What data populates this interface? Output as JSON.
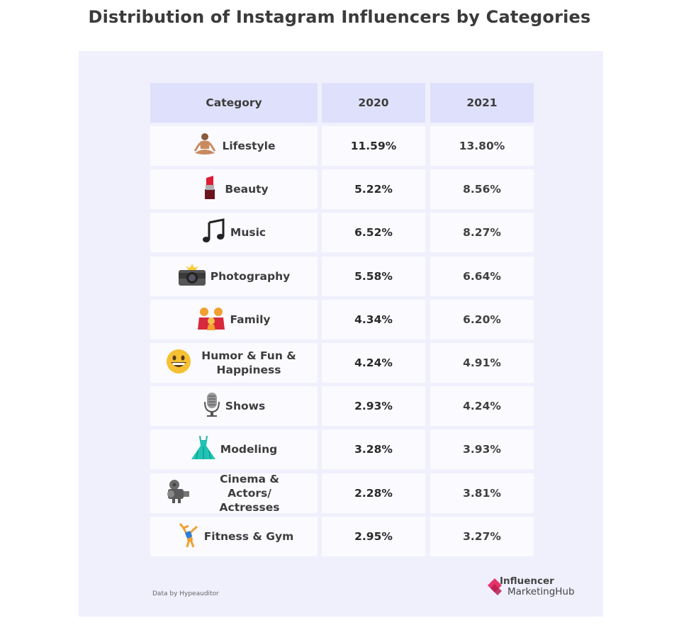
{
  "title": "Distribution of Instagram Influencers by Categories",
  "chart_data": {
    "type": "table",
    "columns": [
      "Category",
      "2020",
      "2021"
    ],
    "rows": [
      {
        "category": "Lifestyle",
        "icon": "person-in-lotus-position-icon",
        "v2020": "11.59%",
        "v2021": "13.80%"
      },
      {
        "category": "Beauty",
        "icon": "lipstick-icon",
        "v2020": "5.22%",
        "v2021": "8.56%"
      },
      {
        "category": "Music",
        "icon": "musical-notes-icon",
        "v2020": "6.52%",
        "v2021": "8.27%"
      },
      {
        "category": "Photography",
        "icon": "camera-with-flash-icon",
        "v2020": "5.58%",
        "v2021": "6.64%"
      },
      {
        "category": "Family",
        "icon": "family-icon",
        "v2020": "4.34%",
        "v2021": "6.20%"
      },
      {
        "category": "Humor & Fun & Happiness",
        "icon": "grinning-face-icon",
        "v2020": "4.24%",
        "v2021": "4.91%"
      },
      {
        "category": "Shows",
        "icon": "microphone-icon",
        "v2020": "2.93%",
        "v2021": "4.24%"
      },
      {
        "category": "Modeling",
        "icon": "dress-icon",
        "v2020": "3.28%",
        "v2021": "3.93%"
      },
      {
        "category": "Cinema & Actors/ Actresses",
        "icon": "film-projector-icon",
        "v2020": "2.28%",
        "v2021": "3.81%"
      },
      {
        "category": "Fitness & Gym",
        "icon": "cartwheeling-person-icon",
        "v2020": "2.95%",
        "v2021": "3.27%"
      }
    ]
  },
  "footer": {
    "source": "Data by Hypeauditor",
    "logo_line1": "Influencer",
    "logo_line2": "MarketingHub"
  },
  "colors": {
    "panel": "#f0f0fd",
    "header_cell": "#dfe0fb",
    "body_cell": "#fafaff",
    "logo_accent": "#e8336a"
  }
}
